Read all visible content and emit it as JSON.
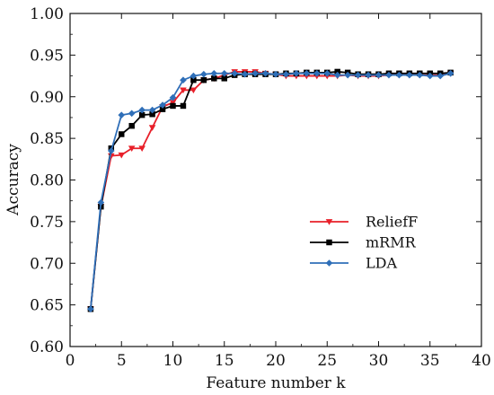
{
  "chart_data": {
    "type": "line",
    "xlabel": "Feature number k",
    "ylabel": "Accuracy",
    "xlim": [
      0,
      40
    ],
    "ylim": [
      0.6,
      1.0
    ],
    "x_ticks": [
      0,
      5,
      10,
      15,
      20,
      25,
      30,
      35,
      40
    ],
    "y_ticks": [
      "0.60",
      "0.65",
      "0.70",
      "0.75",
      "0.80",
      "0.85",
      "0.90",
      "0.95",
      "1.00"
    ],
    "legend_position": "center-right",
    "x": [
      2,
      3,
      4,
      5,
      6,
      7,
      8,
      9,
      10,
      11,
      12,
      13,
      14,
      15,
      16,
      17,
      18,
      19,
      20,
      21,
      22,
      23,
      24,
      25,
      26,
      27,
      28,
      29,
      30,
      31,
      32,
      33,
      34,
      35,
      36,
      37
    ],
    "series": [
      {
        "name": "ReliefF",
        "color": "#e8202a",
        "marker": "triangle-down",
        "values": [
          0.645,
          0.768,
          0.829,
          0.83,
          0.838,
          0.838,
          0.863,
          0.888,
          0.893,
          0.908,
          0.908,
          0.92,
          0.922,
          0.926,
          0.93,
          0.93,
          0.93,
          0.928,
          0.927,
          0.925,
          0.925,
          0.925,
          0.925,
          0.925,
          0.925,
          0.926,
          0.925,
          0.925,
          0.925,
          0.926,
          0.926,
          0.926,
          0.926,
          0.926,
          0.926,
          0.928
        ]
      },
      {
        "name": "mRMR",
        "color": "#000000",
        "marker": "square",
        "values": [
          0.645,
          0.768,
          0.838,
          0.855,
          0.865,
          0.878,
          0.879,
          0.885,
          0.889,
          0.889,
          0.92,
          0.92,
          0.922,
          0.922,
          0.926,
          0.927,
          0.927,
          0.927,
          0.927,
          0.928,
          0.928,
          0.929,
          0.929,
          0.929,
          0.93,
          0.929,
          0.927,
          0.927,
          0.927,
          0.928,
          0.928,
          0.928,
          0.928,
          0.928,
          0.928,
          0.929
        ]
      },
      {
        "name": "LDA",
        "color": "#2f6fb8",
        "marker": "diamond",
        "values": [
          0.645,
          0.773,
          0.835,
          0.878,
          0.88,
          0.884,
          0.884,
          0.89,
          0.899,
          0.92,
          0.925,
          0.927,
          0.928,
          0.928,
          0.928,
          0.927,
          0.928,
          0.928,
          0.927,
          0.927,
          0.928,
          0.928,
          0.928,
          0.928,
          0.926,
          0.926,
          0.926,
          0.926,
          0.926,
          0.926,
          0.926,
          0.926,
          0.926,
          0.925,
          0.925,
          0.928
        ]
      }
    ]
  }
}
